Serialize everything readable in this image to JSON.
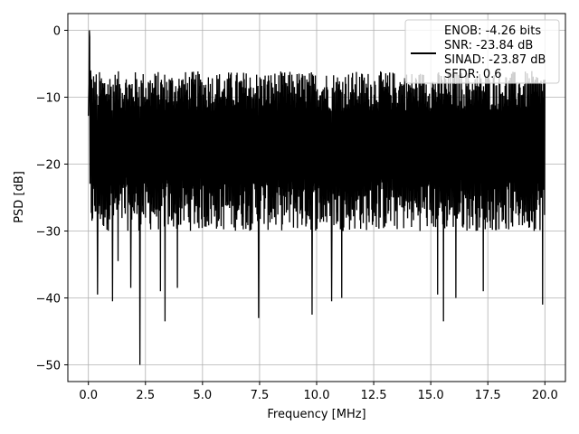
{
  "chart_data": {
    "type": "line",
    "title": "",
    "xlabel": "Frequency [MHz]",
    "ylabel": "PSD [dB]",
    "xlim": [
      -0.9,
      20.9
    ],
    "ylim": [
      -52.5,
      2.5
    ],
    "xticks": [
      0.0,
      2.5,
      5.0,
      7.5,
      10.0,
      12.5,
      15.0,
      17.5,
      20.0
    ],
    "xtick_labels": [
      "0.0",
      "2.5",
      "5.0",
      "7.5",
      "10.0",
      "12.5",
      "15.0",
      "17.5",
      "20.0"
    ],
    "yticks": [
      0,
      -10,
      -20,
      -30,
      -40,
      -50
    ],
    "ytick_labels": [
      "0",
      "−10",
      "−20",
      "−30",
      "−40",
      "−50"
    ],
    "grid": true,
    "legend_position": "top-right",
    "legend_lines": [
      "ENOB: -4.26 bits",
      "SNR: -23.84 dB",
      "SINAD: -23.87 dB",
      "SFDR: 0.6"
    ],
    "series": [
      {
        "color": "#000000",
        "style": "noise-band",
        "x_range": [
          0.0,
          20.0
        ],
        "typical_upper": -10,
        "typical_lower": -26,
        "peak_value": 0.0,
        "peak_x": 0.03,
        "spikes": [
          {
            "x": 0.05,
            "y": -1
          },
          {
            "x": 0.1,
            "y": -6
          },
          {
            "x": 0.4,
            "y": -39.5
          },
          {
            "x": 1.05,
            "y": -40.5
          },
          {
            "x": 1.3,
            "y": -34.5
          },
          {
            "x": 1.85,
            "y": -38.5
          },
          {
            "x": 2.25,
            "y": -50.0
          },
          {
            "x": 3.15,
            "y": -39.0
          },
          {
            "x": 3.35,
            "y": -43.5
          },
          {
            "x": 3.9,
            "y": -38.5
          },
          {
            "x": 7.45,
            "y": -43.0
          },
          {
            "x": 9.8,
            "y": -42.5
          },
          {
            "x": 10.65,
            "y": -40.5
          },
          {
            "x": 11.1,
            "y": -40.0
          },
          {
            "x": 15.3,
            "y": -39.5
          },
          {
            "x": 15.55,
            "y": -43.5
          },
          {
            "x": 16.1,
            "y": -40.0
          },
          {
            "x": 17.3,
            "y": -39.0
          },
          {
            "x": 19.9,
            "y": -41.0
          }
        ]
      }
    ]
  }
}
